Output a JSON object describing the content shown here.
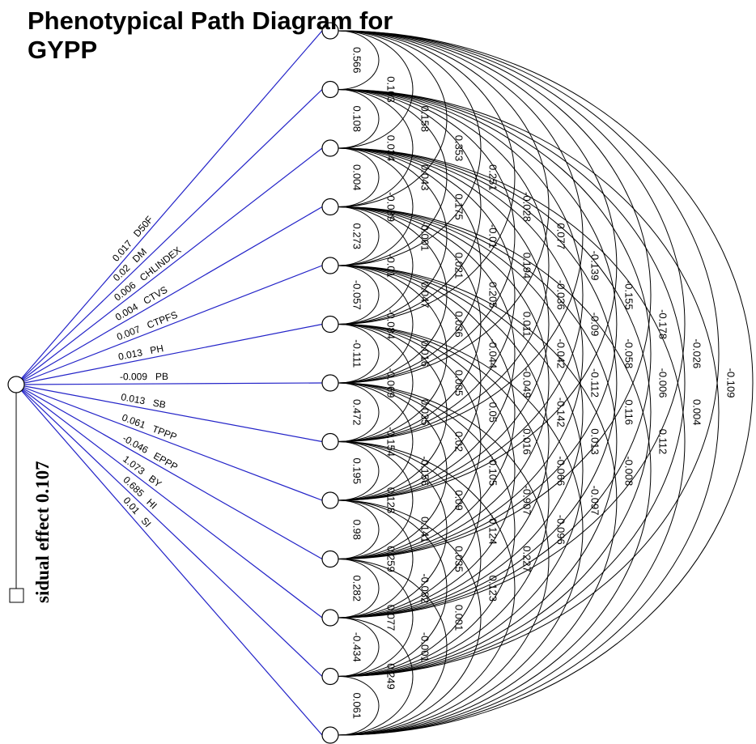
{
  "title": "Phenotypical Path Diagram for GYPP",
  "residual": "sidual effect 0.107",
  "nodes": [
    {
      "label": "D50F",
      "direct": 0.017
    },
    {
      "label": "DM",
      "direct": 0.02
    },
    {
      "label": "CHLINDEX",
      "direct": 0.006
    },
    {
      "label": "CTVS",
      "direct": 0.004
    },
    {
      "label": "CTPFS",
      "direct": 0.007
    },
    {
      "label": "PH",
      "direct": 0.013
    },
    {
      "label": "PB",
      "direct": -0.009
    },
    {
      "label": "SB",
      "direct": 0.013
    },
    {
      "label": "TPPP",
      "direct": 0.061
    },
    {
      "label": "EPPP",
      "direct": -0.046
    },
    {
      "label": "BY",
      "direct": 1.073
    },
    {
      "label": "HI",
      "direct": 0.685
    },
    {
      "label": "SI",
      "direct": 0.01
    }
  ],
  "correlations": [
    [
      0.566,
      0.108,
      0.004,
      0.273,
      -0.057,
      -0.111,
      0.472,
      0.195,
      0.98,
      0.282,
      -0.434,
      0.061
    ],
    [
      0.103,
      0.034,
      -0.089,
      -0.01,
      -0.084,
      -0.069,
      -0.154,
      0.128,
      0.259,
      0.077,
      0.249
    ],
    [
      0.158,
      0.043,
      -0.001,
      0.047,
      0.016,
      0.035,
      -0.156,
      0.141,
      -0.082,
      -0.001
    ],
    [
      0.353,
      0.175,
      0.021,
      0.036,
      0.005,
      0.02,
      0.09,
      0.035,
      0.001
    ],
    [
      0.251,
      -0.01,
      0.205,
      -0.044,
      0.05,
      -0.105,
      -0.124,
      0.123
    ],
    [
      -0.028,
      0.194,
      0.011,
      -0.049,
      0.016,
      -0.907,
      0.227
    ],
    [
      0.077,
      -0.036,
      -0.042,
      -0.142,
      -0.066,
      -0.096
    ],
    [
      -0.139,
      -0.09,
      -0.112,
      0.013,
      -0.097
    ],
    [
      -0.155,
      -0.058,
      0.116,
      -0.008
    ],
    [
      -0.178,
      -0.006,
      0.112
    ],
    [
      -0.026,
      0.004
    ],
    [
      -0.109
    ]
  ]
}
